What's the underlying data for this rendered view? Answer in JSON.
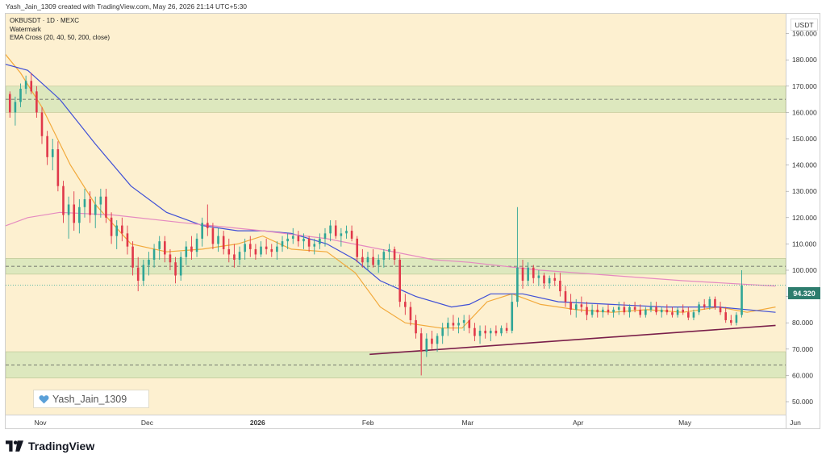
{
  "header": {
    "created_by": "Yash_Jain_1309 created with TradingView.com, May 26, 2026 21:14 UTC+5:30"
  },
  "legend": {
    "symbol_line": "OKBUSDT · 1D · MEXC",
    "watermark_line": "Watermark",
    "indicator_line": "EMA Cross (20, 40, 50, 200, close)"
  },
  "watermark_label": "Yash_Jain_1309",
  "footer_brand": "TradingView",
  "currency": "USDT",
  "last_price_label": "94.320",
  "colors": {
    "plot_bg": "#fdf0d0",
    "zone_fill": "#dde8be",
    "up": "#2fa596",
    "down": "#e0384a",
    "ema20": "#f2a93b",
    "ema50": "#3f4fd6",
    "ema200": "#e58ac0",
    "trendline": "#7a1f4a",
    "price_box": "#2e7d6e"
  },
  "chart_data": {
    "type": "candlestick",
    "symbol": "OKBUSDT",
    "timeframe": "1D",
    "exchange": "MEXC",
    "y_ticks": [
      50,
      60,
      70,
      80,
      90,
      100,
      110,
      120,
      130,
      140,
      150,
      160,
      170,
      180,
      190
    ],
    "y_tick_labels": [
      "50.000",
      "60.000",
      "70.000",
      "80.000",
      "90.000",
      "100.000",
      "110.000",
      "120.000",
      "130.000",
      "140.000",
      "150.000",
      "160.000",
      "170.000",
      "180.000",
      "190.000"
    ],
    "ylim": [
      46,
      200
    ],
    "x_labels": [
      {
        "label": "Nov",
        "day": 0
      },
      {
        "label": "Dec",
        "day": 30
      },
      {
        "label": "2026",
        "day": 61
      },
      {
        "label": "Feb",
        "day": 92
      },
      {
        "label": "Mar",
        "day": 120
      },
      {
        "label": "Apr",
        "day": 151
      },
      {
        "label": "May",
        "day": 181
      },
      {
        "label": "Jun",
        "day": 212
      }
    ],
    "xlim": [
      -12,
      218
    ],
    "last_price": 94.32,
    "zones": [
      {
        "low": 160,
        "high": 170,
        "mid": 165
      },
      {
        "low": 98.5,
        "high": 104.5,
        "mid": 101.5
      },
      {
        "low": 59,
        "high": 69,
        "mid": 64
      }
    ],
    "trendline": {
      "from": {
        "day": 92,
        "price": 68
      },
      "to": {
        "day": 206,
        "price": 79
      }
    },
    "ohlc_days_start": -12,
    "ohlc": [
      [
        168,
        172,
        163,
        170
      ],
      [
        170,
        173,
        166,
        167
      ],
      [
        167,
        168,
        158,
        160
      ],
      [
        160,
        166,
        155,
        164
      ],
      [
        164,
        171,
        162,
        169
      ],
      [
        169,
        174,
        167,
        172
      ],
      [
        172,
        175,
        167,
        168
      ],
      [
        168,
        170,
        158,
        160
      ],
      [
        160,
        162,
        148,
        151
      ],
      [
        151,
        153,
        140,
        143
      ],
      [
        143,
        150,
        138,
        146
      ],
      [
        146,
        149,
        130,
        132
      ],
      [
        132,
        134,
        118,
        121
      ],
      [
        121,
        128,
        112,
        125
      ],
      [
        125,
        130,
        115,
        118
      ],
      [
        118,
        127,
        114,
        124
      ],
      [
        124,
        131,
        120,
        127
      ],
      [
        127,
        130,
        118,
        121
      ],
      [
        121,
        128,
        116,
        125
      ],
      [
        125,
        131,
        120,
        128
      ],
      [
        128,
        131,
        118,
        120
      ],
      [
        120,
        122,
        110,
        113
      ],
      [
        113,
        119,
        108,
        117
      ],
      [
        117,
        120,
        111,
        114
      ],
      [
        114,
        117,
        106,
        109
      ],
      [
        109,
        111,
        98,
        101
      ],
      [
        101,
        105,
        92,
        96
      ],
      [
        96,
        104,
        94,
        102
      ],
      [
        102,
        107,
        98,
        104
      ],
      [
        104,
        110,
        101,
        108
      ],
      [
        108,
        113,
        104,
        111
      ],
      [
        111,
        113,
        103,
        106
      ],
      [
        106,
        108,
        100,
        103
      ],
      [
        103,
        105,
        95,
        98
      ],
      [
        98,
        107,
        96,
        105
      ],
      [
        105,
        111,
        102,
        109
      ],
      [
        109,
        113,
        104,
        107
      ],
      [
        107,
        114,
        105,
        112
      ],
      [
        112,
        120,
        109,
        118
      ],
      [
        118,
        125,
        113,
        116
      ],
      [
        116,
        118,
        108,
        110
      ],
      [
        110,
        116,
        107,
        113
      ],
      [
        113,
        115,
        106,
        108
      ],
      [
        108,
        112,
        103,
        106
      ],
      [
        106,
        110,
        101,
        104
      ],
      [
        104,
        109,
        102,
        107
      ],
      [
        107,
        112,
        104,
        110
      ],
      [
        110,
        113,
        105,
        108
      ],
      [
        108,
        110,
        104,
        106
      ],
      [
        106,
        111,
        105,
        109
      ],
      [
        109,
        112,
        106,
        108
      ],
      [
        108,
        110,
        105,
        107
      ],
      [
        107,
        111,
        104,
        109
      ],
      [
        109,
        113,
        107,
        111
      ],
      [
        111,
        114,
        108,
        112
      ],
      [
        112,
        116,
        110,
        113
      ],
      [
        113,
        115,
        109,
        111
      ],
      [
        111,
        114,
        108,
        112
      ],
      [
        112,
        113,
        107,
        109
      ],
      [
        109,
        112,
        106,
        110
      ],
      [
        110,
        114,
        108,
        112
      ],
      [
        112,
        116,
        109,
        114
      ],
      [
        114,
        119,
        111,
        117
      ],
      [
        117,
        119,
        112,
        113
      ],
      [
        113,
        116,
        109,
        114
      ],
      [
        114,
        117,
        112,
        115
      ],
      [
        115,
        117,
        111,
        112
      ],
      [
        112,
        113,
        103,
        105
      ],
      [
        105,
        108,
        101,
        103
      ],
      [
        103,
        107,
        100,
        105
      ],
      [
        105,
        108,
        101,
        102
      ],
      [
        102,
        106,
        99,
        104
      ],
      [
        104,
        108,
        101,
        107
      ],
      [
        107,
        110,
        104,
        108
      ],
      [
        108,
        109,
        102,
        104
      ],
      [
        104,
        106,
        86,
        88
      ],
      [
        88,
        91,
        83,
        86
      ],
      [
        86,
        88,
        79,
        81
      ],
      [
        81,
        83,
        74,
        76
      ],
      [
        76,
        78,
        60,
        69
      ],
      [
        69,
        76,
        67,
        74
      ],
      [
        74,
        77,
        70,
        72
      ],
      [
        72,
        76,
        69,
        75
      ],
      [
        75,
        80,
        72,
        78
      ],
      [
        78,
        82,
        75,
        80
      ],
      [
        80,
        83,
        77,
        79
      ],
      [
        79,
        82,
        76,
        80
      ],
      [
        80,
        83,
        77,
        81
      ],
      [
        81,
        83,
        76,
        78
      ],
      [
        78,
        80,
        73,
        75
      ],
      [
        75,
        79,
        72,
        77
      ],
      [
        77,
        79,
        74,
        76
      ],
      [
        76,
        78,
        73,
        77
      ],
      [
        77,
        79,
        75,
        76
      ],
      [
        76,
        79,
        75,
        78
      ],
      [
        78,
        80,
        76,
        77
      ],
      [
        77,
        91,
        76,
        88
      ],
      [
        88,
        124,
        86,
        101
      ],
      [
        101,
        104,
        93,
        96
      ],
      [
        96,
        103,
        94,
        101
      ],
      [
        101,
        102,
        95,
        97
      ],
      [
        97,
        100,
        94,
        98
      ],
      [
        98,
        99,
        93,
        95
      ],
      [
        95,
        98,
        93,
        97
      ],
      [
        97,
        99,
        94,
        96
      ],
      [
        96,
        99,
        90,
        92
      ],
      [
        92,
        94,
        86,
        88
      ],
      [
        88,
        91,
        83,
        85
      ],
      [
        85,
        89,
        82,
        87
      ],
      [
        87,
        90,
        84,
        86
      ],
      [
        86,
        88,
        81,
        83
      ],
      [
        83,
        87,
        82,
        85
      ],
      [
        85,
        87,
        82,
        84
      ],
      [
        84,
        86,
        82,
        85
      ],
      [
        85,
        87,
        83,
        84
      ],
      [
        84,
        86,
        82,
        85
      ],
      [
        85,
        88,
        83,
        86
      ],
      [
        86,
        88,
        83,
        84
      ],
      [
        84,
        87,
        82,
        86
      ],
      [
        86,
        88,
        84,
        85
      ],
      [
        85,
        87,
        82,
        83
      ],
      [
        83,
        86,
        82,
        85
      ],
      [
        85,
        88,
        84,
        86
      ],
      [
        86,
        88,
        83,
        84
      ],
      [
        84,
        86,
        82,
        85
      ],
      [
        85,
        87,
        83,
        84
      ],
      [
        84,
        86,
        82,
        83
      ],
      [
        83,
        86,
        82,
        85
      ],
      [
        85,
        87,
        83,
        84
      ],
      [
        84,
        86,
        81,
        82
      ],
      [
        82,
        85,
        81,
        84
      ],
      [
        84,
        88,
        83,
        87
      ],
      [
        87,
        89,
        85,
        86
      ],
      [
        86,
        90,
        85,
        89
      ],
      [
        89,
        90,
        85,
        86
      ],
      [
        86,
        88,
        83,
        84
      ],
      [
        84,
        86,
        80,
        81
      ],
      [
        81,
        83,
        79,
        80
      ],
      [
        80,
        84,
        79,
        83
      ],
      [
        83,
        100,
        82,
        94.32
      ]
    ],
    "ema_lines": [
      {
        "name": "EMA 20",
        "points": [
          [
            -12,
            185
          ],
          [
            -6,
            175
          ],
          [
            0,
            162
          ],
          [
            8,
            140
          ],
          [
            15,
            125
          ],
          [
            25,
            110
          ],
          [
            35,
            107
          ],
          [
            45,
            108
          ],
          [
            55,
            110
          ],
          [
            62,
            113
          ],
          [
            70,
            108
          ],
          [
            80,
            107
          ],
          [
            88,
            99
          ],
          [
            95,
            86
          ],
          [
            102,
            80
          ],
          [
            112,
            78
          ],
          [
            118,
            78
          ],
          [
            125,
            88
          ],
          [
            132,
            91
          ],
          [
            140,
            87
          ],
          [
            150,
            85
          ],
          [
            160,
            84
          ],
          [
            170,
            85
          ],
          [
            180,
            84
          ],
          [
            190,
            86
          ],
          [
            198,
            84
          ],
          [
            206,
            86
          ]
        ]
      },
      {
        "name": "EMA 50",
        "points": [
          [
            -12,
            179
          ],
          [
            -4,
            176
          ],
          [
            5,
            165
          ],
          [
            15,
            148
          ],
          [
            25,
            132
          ],
          [
            35,
            122
          ],
          [
            45,
            117
          ],
          [
            55,
            115
          ],
          [
            62,
            115
          ],
          [
            70,
            114
          ],
          [
            80,
            110
          ],
          [
            88,
            104
          ],
          [
            95,
            96
          ],
          [
            105,
            90
          ],
          [
            115,
            86
          ],
          [
            120,
            87
          ],
          [
            126,
            91
          ],
          [
            135,
            91
          ],
          [
            145,
            88
          ],
          [
            160,
            87
          ],
          [
            175,
            86
          ],
          [
            190,
            86
          ],
          [
            206,
            84
          ]
        ]
      },
      {
        "name": "EMA 200",
        "points": [
          [
            -12,
            116
          ],
          [
            -4,
            120
          ],
          [
            5,
            122
          ],
          [
            20,
            121
          ],
          [
            40,
            118
          ],
          [
            62,
            115
          ],
          [
            80,
            112
          ],
          [
            95,
            108
          ],
          [
            110,
            104
          ],
          [
            120,
            103
          ],
          [
            140,
            100
          ],
          [
            160,
            98
          ],
          [
            180,
            96
          ],
          [
            206,
            94
          ]
        ]
      }
    ]
  }
}
